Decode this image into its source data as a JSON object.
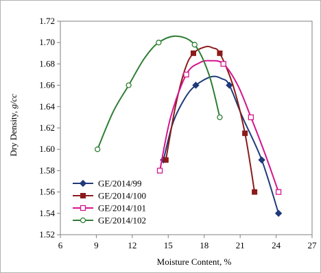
{
  "chart_data": {
    "type": "line",
    "title": "",
    "xlabel": "Moisture Content, %",
    "ylabel_main": "Dry Density, ",
    "ylabel_unit": "g/cc",
    "xlim": [
      6,
      27
    ],
    "ylim": [
      1.52,
      1.72
    ],
    "x_ticks": [
      6,
      9,
      12,
      15,
      18,
      21,
      24,
      27
    ],
    "y_ticks": [
      1.52,
      1.54,
      1.56,
      1.58,
      1.6,
      1.62,
      1.64,
      1.66,
      1.68,
      1.7,
      1.72
    ],
    "x_tick_labels": [
      "6",
      "9",
      "12",
      "15",
      "18",
      "21",
      "24",
      "27"
    ],
    "y_tick_labels": [
      "1.52",
      "1.54",
      "1.56",
      "1.58",
      "1.60",
      "1.62",
      "1.64",
      "1.66",
      "1.68",
      "1.70",
      "1.72"
    ],
    "grid": false,
    "legend_position": "lower-left",
    "series": [
      {
        "name": "GE/2014/99",
        "color": "#1f3a7a",
        "marker": "diamond",
        "points": [
          [
            14.6,
            1.59
          ],
          [
            17.3,
            1.66
          ],
          [
            20.1,
            1.66
          ],
          [
            22.8,
            1.59
          ],
          [
            24.2,
            1.54
          ]
        ],
        "curve": [
          [
            14.6,
            1.59
          ],
          [
            15.4,
            1.625
          ],
          [
            16.4,
            1.648
          ],
          [
            17.3,
            1.66
          ],
          [
            18.6,
            1.668
          ],
          [
            19.5,
            1.666
          ],
          [
            20.1,
            1.66
          ],
          [
            21.2,
            1.63
          ],
          [
            22.8,
            1.59
          ],
          [
            24.2,
            1.54
          ]
        ]
      },
      {
        "name": "GE/2014/100",
        "color": "#8b1a1a",
        "marker": "square-filled",
        "points": [
          [
            14.8,
            1.59
          ],
          [
            17.1,
            1.69
          ],
          [
            19.3,
            1.69
          ],
          [
            21.4,
            1.615
          ],
          [
            22.2,
            1.56
          ]
        ],
        "curve": [
          [
            14.8,
            1.59
          ],
          [
            15.6,
            1.64
          ],
          [
            16.4,
            1.675
          ],
          [
            17.1,
            1.69
          ],
          [
            18.1,
            1.696
          ],
          [
            18.7,
            1.695
          ],
          [
            19.3,
            1.69
          ],
          [
            20.4,
            1.66
          ],
          [
            21.4,
            1.615
          ],
          [
            22.2,
            1.56
          ]
        ]
      },
      {
        "name": "GE/2014/101",
        "color": "#d4148c",
        "marker": "square-open",
        "points": [
          [
            14.3,
            1.58
          ],
          [
            16.5,
            1.67
          ],
          [
            19.6,
            1.68
          ],
          [
            21.9,
            1.63
          ],
          [
            24.2,
            1.56
          ]
        ],
        "curve": [
          [
            14.3,
            1.58
          ],
          [
            15.2,
            1.63
          ],
          [
            16.5,
            1.67
          ],
          [
            17.6,
            1.681
          ],
          [
            18.5,
            1.683
          ],
          [
            19.6,
            1.68
          ],
          [
            20.8,
            1.66
          ],
          [
            21.9,
            1.63
          ],
          [
            23.1,
            1.595
          ],
          [
            24.2,
            1.56
          ]
        ]
      },
      {
        "name": "GE/2014/102",
        "color": "#2e7d32",
        "marker": "circle-open",
        "points": [
          [
            9.1,
            1.6
          ],
          [
            11.7,
            1.66
          ],
          [
            14.2,
            1.7
          ],
          [
            17.2,
            1.698
          ],
          [
            19.3,
            1.63
          ]
        ],
        "curve": [
          [
            9.1,
            1.6
          ],
          [
            10.4,
            1.635
          ],
          [
            11.7,
            1.66
          ],
          [
            13.0,
            1.685
          ],
          [
            14.2,
            1.7
          ],
          [
            15.7,
            1.706
          ],
          [
            17.2,
            1.698
          ],
          [
            18.4,
            1.67
          ],
          [
            19.3,
            1.63
          ]
        ]
      }
    ]
  }
}
